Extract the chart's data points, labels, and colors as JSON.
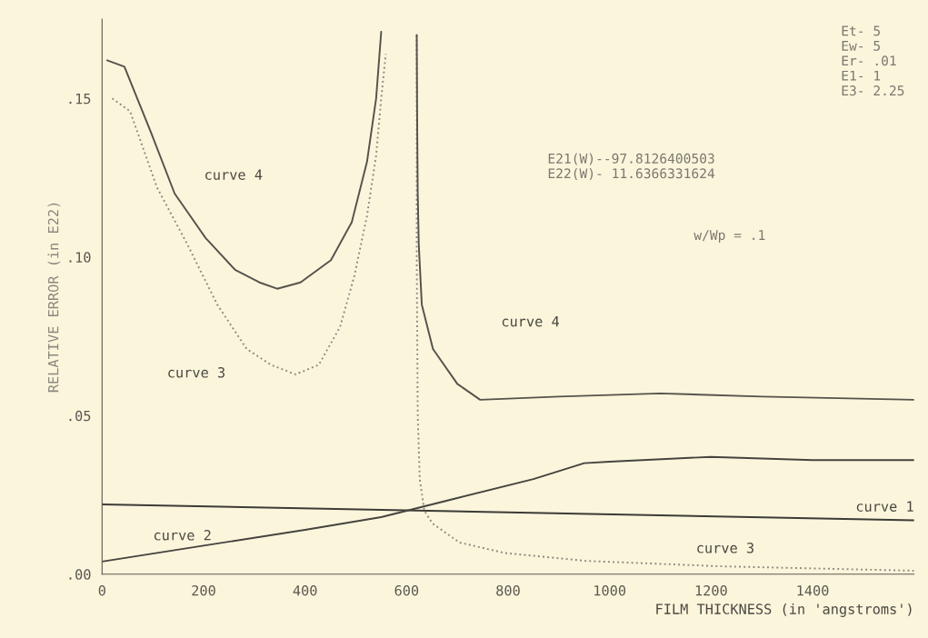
{
  "chart_data": {
    "type": "line",
    "xlabel": "FILM THICKNESS (in 'angstroms')",
    "ylabel": "RELATIVE ERROR (in E22)",
    "xlim": [
      0,
      1600
    ],
    "ylim": [
      0,
      0.175
    ],
    "xticks": [
      0,
      200,
      400,
      600,
      800,
      1000,
      1200,
      1400
    ],
    "yticks": [
      {
        "value": 0,
        "label": ".00"
      },
      {
        "value": 0.05,
        "label": ".05"
      },
      {
        "value": 0.1,
        "label": ".10"
      },
      {
        "value": 0.15,
        "label": ".15"
      }
    ],
    "grid": false,
    "legend": false,
    "marker": "none",
    "series": [
      {
        "color": "#3c3b36",
        "line_style": "solid",
        "x": [
          0,
          1600
        ],
        "values": [
          0.022,
          0.017
        ]
      },
      {
        "color": "#45443e",
        "line_style": "solid",
        "x": [
          0,
          200,
          400,
          550,
          700,
          850,
          950,
          1000,
          1200,
          1400,
          1600
        ],
        "values": [
          0.004,
          0.009,
          0.014,
          0.018,
          0.024,
          0.03,
          0.035,
          0.0355,
          0.037,
          0.036,
          0.036
        ]
      },
      {
        "color": "#8d8b80",
        "line_style": "dotted",
        "x": [
          20,
          55,
          108,
          168,
          227,
          285,
          333,
          381,
          427,
          469,
          497,
          522,
          540,
          550,
          559,
          null,
          620,
          620,
          622,
          626,
          635,
          651,
          704,
          793,
          952,
          1218,
          1600
        ],
        "values": [
          0.15,
          0.146,
          0.122,
          0.104,
          0.085,
          0.071,
          0.066,
          0.063,
          0.066,
          0.078,
          0.094,
          0.113,
          0.132,
          0.15,
          0.164,
          null,
          0.17,
          0.1,
          0.05,
          0.03,
          0.02,
          0.016,
          0.01,
          0.0067,
          0.0042,
          0.0025,
          0.0011
        ]
      },
      {
        "color": "#55534b",
        "line_style": "solid",
        "x": [
          10,
          44,
          97,
          143,
          204,
          262,
          310,
          345,
          391,
          451,
          492,
          522,
          540,
          550,
          null,
          620,
          621,
          622,
          624,
          630,
          652,
          700,
          745,
          900,
          1100,
          1300,
          1600
        ],
        "values": [
          0.162,
          0.16,
          0.139,
          0.12,
          0.106,
          0.096,
          0.092,
          0.09,
          0.092,
          0.099,
          0.111,
          0.13,
          0.15,
          0.171,
          null,
          0.17,
          0.14,
          0.12,
          0.104,
          0.085,
          0.071,
          0.06,
          0.055,
          0.056,
          0.057,
          0.056,
          0.055
        ]
      }
    ],
    "annotations": [
      "curve 4",
      "curve 3",
      "curve 4",
      "curve 2",
      "curve 1",
      "curve 3",
      "Et- 5\nEw- 5\nEr- .01\nE1- 1\nE3- 2.25",
      "E21(W)--97.8126400503\nE22(W)- 11.6366331624",
      "w/Wp = .1"
    ]
  }
}
